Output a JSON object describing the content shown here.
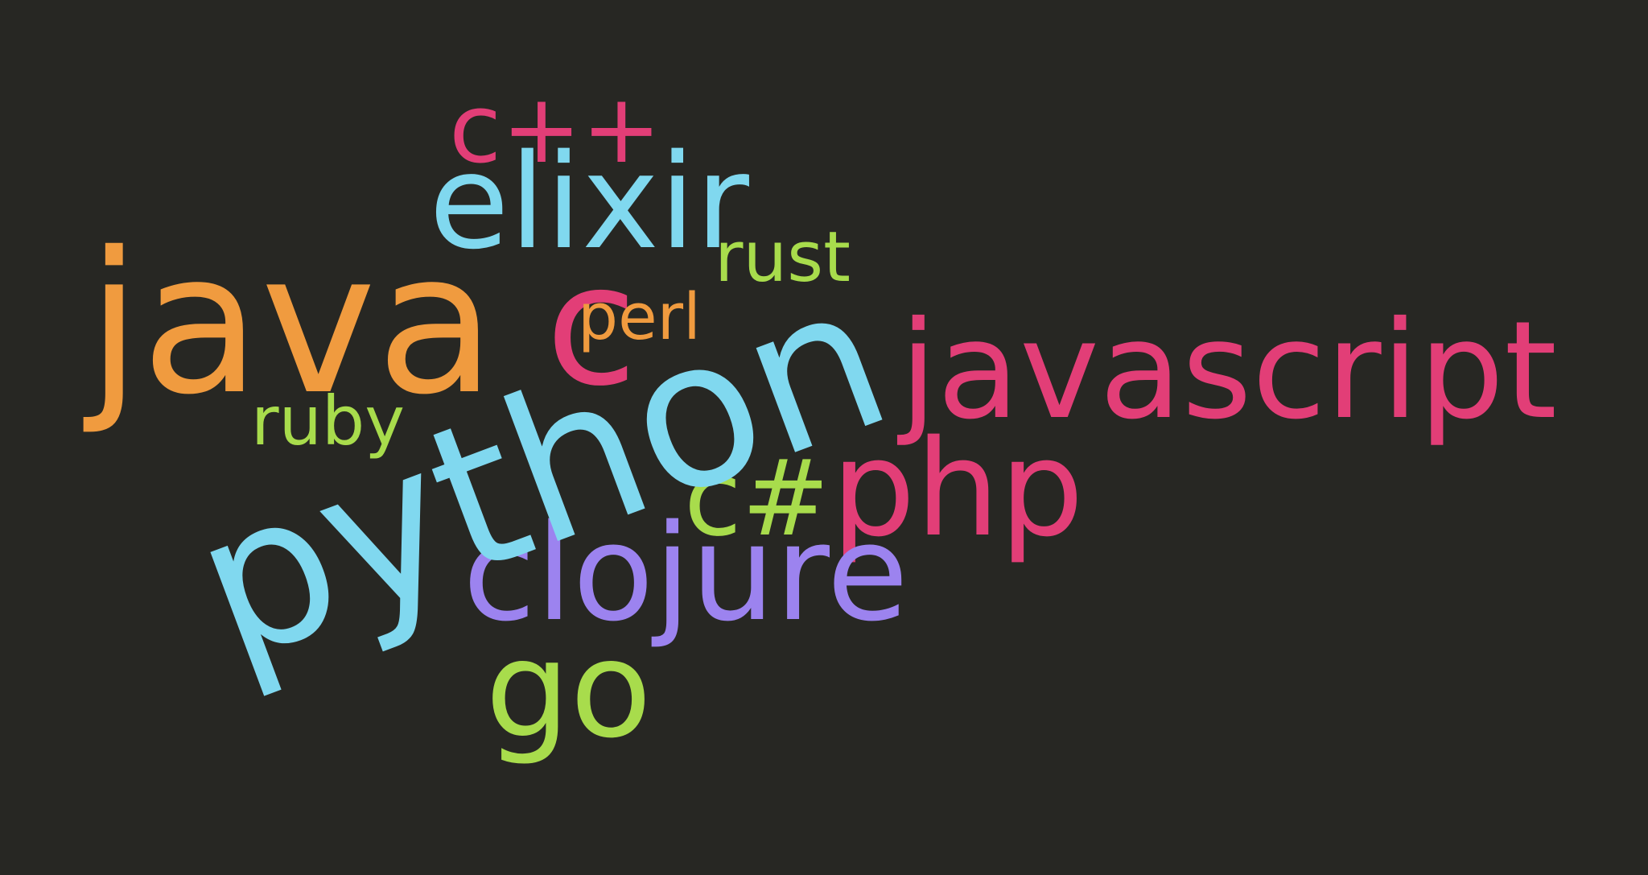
{
  "cloud": {
    "background_color": "#272723",
    "palette": {
      "pink": "#e23e77",
      "cyan": "#80d8ef",
      "orange": "#f09b3f",
      "green": "#a8dc4c",
      "purple": "#9c83ef"
    },
    "words": [
      {
        "id": "python",
        "text": "python",
        "color": "cyan",
        "rotated": true
      },
      {
        "id": "java",
        "text": "java",
        "color": "orange",
        "rotated": false
      },
      {
        "id": "javascript",
        "text": "javascript",
        "color": "pink",
        "rotated": false
      },
      {
        "id": "elixir",
        "text": "elixir",
        "color": "cyan",
        "rotated": false
      },
      {
        "id": "c",
        "text": "c",
        "color": "pink",
        "rotated": false
      },
      {
        "id": "cpp",
        "text": "c++",
        "color": "pink",
        "rotated": false
      },
      {
        "id": "php",
        "text": "php",
        "color": "pink",
        "rotated": false
      },
      {
        "id": "clojure",
        "text": "clojure",
        "color": "purple",
        "rotated": false
      },
      {
        "id": "csharp",
        "text": "c#",
        "color": "green",
        "rotated": false
      },
      {
        "id": "go",
        "text": "go",
        "color": "green",
        "rotated": false
      },
      {
        "id": "rust",
        "text": "rust",
        "color": "green",
        "rotated": false
      },
      {
        "id": "ruby",
        "text": "ruby",
        "color": "green",
        "rotated": false
      },
      {
        "id": "perl",
        "text": "perl",
        "color": "orange",
        "rotated": false
      }
    ]
  }
}
